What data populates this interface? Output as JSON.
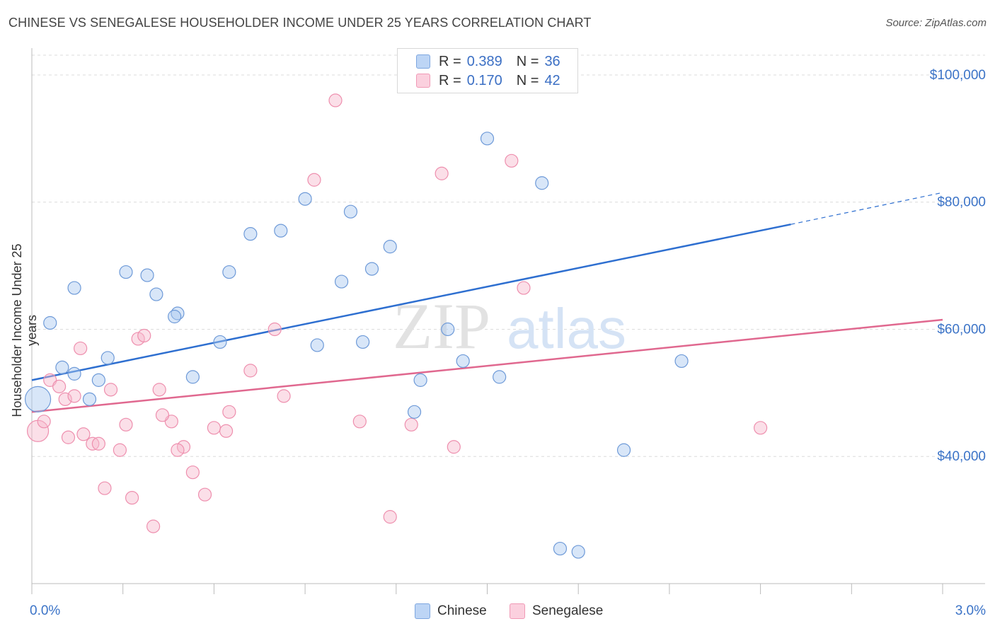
{
  "title": "CHINESE VS SENEGALESE HOUSEHOLDER INCOME UNDER 25 YEARS CORRELATION CHART",
  "source": "Source: ZipAtlas.com",
  "watermark": {
    "zip": "ZIP",
    "atlas": "atlas"
  },
  "legend_top": {
    "rows": [
      {
        "r_key": "R =",
        "r_val": "0.389",
        "n_key": "N =",
        "n_val": "36",
        "color": "#a9c8f0"
      },
      {
        "r_key": "R =",
        "r_val": "0.170",
        "n_key": "N =",
        "n_val": "42",
        "color": "#f6b8cb"
      }
    ]
  },
  "legend_bottom": {
    "chinese": "Chinese",
    "senegalese": "Senegalese"
  },
  "chart_data": {
    "type": "scatter",
    "title": "CHINESE VS SENEGALESE HOUSEHOLDER INCOME UNDER 25 YEARS CORRELATION CHART",
    "xlabel": "",
    "ylabel": "Householder Income Under 25 years",
    "xlim": [
      0.0,
      3.0
    ],
    "ylim": [
      20000,
      104000
    ],
    "x_tick_labels": [
      "0.0%",
      "3.0%"
    ],
    "y_ticks": [
      40000,
      60000,
      80000,
      100000
    ],
    "y_tick_labels": [
      "$40,000",
      "$60,000",
      "$80,000",
      "$100,000"
    ],
    "grid": true,
    "legend_position": "top-center",
    "colors": {
      "chinese": "#a9c8f0",
      "chinese_line": "#2e6fd0",
      "senegalese": "#f6b8cb",
      "senegalese_line": "#e0688f",
      "axis_label": "#3b73c7"
    },
    "series": [
      {
        "name": "Chinese",
        "x": [
          0.02,
          0.06,
          0.1,
          0.14,
          0.22,
          0.19,
          0.25,
          0.31,
          0.38,
          0.41,
          0.48,
          0.53,
          0.62,
          0.65,
          0.72,
          0.82,
          0.9,
          0.94,
          1.02,
          1.05,
          1.12,
          1.18,
          1.26,
          1.28,
          1.37,
          1.42,
          1.5,
          1.54,
          1.68,
          1.74,
          1.8,
          1.95,
          2.14,
          0.47,
          1.09,
          0.14
        ],
        "y": [
          49000,
          61000,
          54000,
          66500,
          52000,
          49000,
          55500,
          69000,
          68500,
          65500,
          62500,
          52500,
          58000,
          69000,
          75000,
          75500,
          80500,
          57500,
          67500,
          78500,
          69500,
          73000,
          47000,
          52000,
          60000,
          55000,
          90000,
          52500,
          83000,
          25500,
          25000,
          41000,
          55000,
          62000,
          58000,
          53000
        ],
        "size_note": "first point is large"
      },
      {
        "name": "Senegalese",
        "x": [
          0.02,
          0.04,
          0.06,
          0.09,
          0.11,
          0.12,
          0.14,
          0.17,
          0.2,
          0.24,
          0.26,
          0.29,
          0.31,
          0.33,
          0.35,
          0.37,
          0.4,
          0.42,
          0.46,
          0.5,
          0.53,
          0.57,
          0.6,
          0.65,
          0.72,
          0.8,
          0.83,
          0.93,
          1.0,
          1.08,
          1.18,
          1.25,
          1.35,
          1.39,
          1.58,
          1.62,
          2.4,
          0.16,
          0.22,
          0.43,
          0.48,
          0.64
        ],
        "y": [
          44000,
          45500,
          52000,
          51000,
          49000,
          43000,
          49500,
          43500,
          42000,
          35000,
          50500,
          41000,
          45000,
          33500,
          58500,
          59000,
          29000,
          50500,
          45500,
          41500,
          37500,
          34000,
          44500,
          47000,
          53500,
          60000,
          49500,
          83500,
          96000,
          45500,
          30500,
          45000,
          84500,
          41500,
          86500,
          66500,
          44500,
          57000,
          42000,
          46500,
          41000,
          44000
        ]
      }
    ],
    "trendlines": [
      {
        "name": "Chinese",
        "x": [
          0.0,
          2.5
        ],
        "y": [
          52000,
          76500
        ],
        "dashed_extension_x": [
          2.5,
          3.0
        ],
        "dashed_extension_y": [
          76500,
          81500
        ]
      },
      {
        "name": "Senegalese",
        "x": [
          0.0,
          3.0
        ],
        "y": [
          47000,
          61500
        ]
      }
    ]
  }
}
